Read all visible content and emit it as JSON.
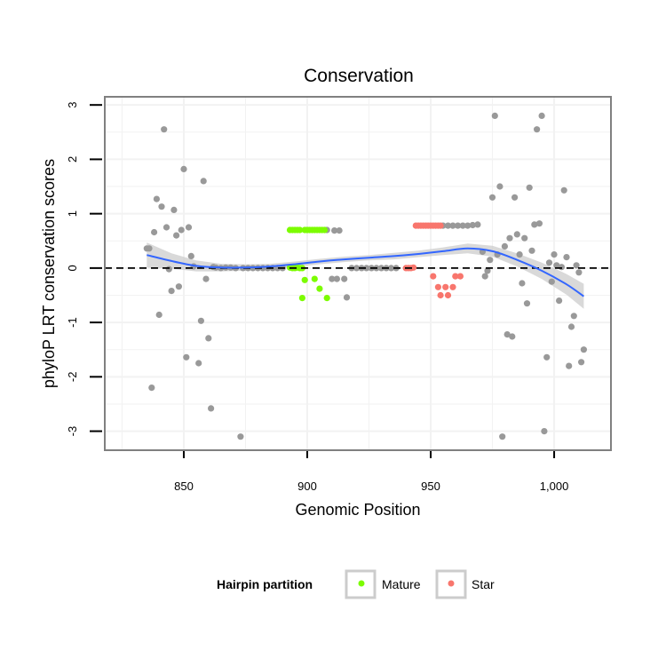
{
  "chart_data": {
    "type": "scatter",
    "title": "Conservation",
    "xlabel": "Genomic Position",
    "ylabel": "phyloP LRT conservation scores",
    "xlim": [
      818,
      1023
    ],
    "ylim": [
      -3.35,
      3.15
    ],
    "x_ticks": [
      850,
      900,
      950,
      1000
    ],
    "x_tick_labels": [
      "850",
      "900",
      "950",
      "1,000"
    ],
    "y_ticks": [
      -3,
      -2,
      -1,
      0,
      1,
      2,
      3
    ],
    "y_tick_labels": [
      "-3",
      "-2",
      "-1",
      "0",
      "1",
      "2",
      "3"
    ],
    "grid": true,
    "reference_line": {
      "y": 0,
      "style": "dashed"
    },
    "legend": {
      "title": "Hairpin partition",
      "position": "bottom",
      "entries": [
        {
          "label": "Mature",
          "color": "#7cfc00"
        },
        {
          "label": "Star",
          "color": "#f8766d"
        }
      ]
    },
    "series": [
      {
        "name": "",
        "color": "#999999",
        "points": [
          [
            835,
            0.36
          ],
          [
            836,
            0.36
          ],
          [
            837,
            -2.2
          ],
          [
            838,
            0.66
          ],
          [
            839,
            1.27
          ],
          [
            840,
            -0.86
          ],
          [
            841,
            1.13
          ],
          [
            842,
            2.55
          ],
          [
            843,
            0.75
          ],
          [
            844,
            -0.02
          ],
          [
            845,
            -0.42
          ],
          [
            846,
            1.07
          ],
          [
            847,
            0.6
          ],
          [
            848,
            -0.34
          ],
          [
            849,
            0.7
          ],
          [
            850,
            1.82
          ],
          [
            851,
            -1.64
          ],
          [
            852,
            0.75
          ],
          [
            853,
            0.22
          ],
          [
            854,
            0.03
          ],
          [
            856,
            -1.75
          ],
          [
            857,
            -0.97
          ],
          [
            858,
            1.6
          ],
          [
            859,
            -0.2
          ],
          [
            860,
            -1.29
          ],
          [
            861,
            -2.58
          ],
          [
            862,
            0.02
          ],
          [
            863,
            0.01
          ],
          [
            865,
            0.0
          ],
          [
            867,
            0.01
          ],
          [
            869,
            0.01
          ],
          [
            871,
            0.0
          ],
          [
            873,
            -3.1
          ],
          [
            874,
            0.0
          ],
          [
            876,
            0.0
          ],
          [
            878,
            0.0
          ],
          [
            880,
            0.0
          ],
          [
            882,
            0.0
          ],
          [
            884,
            0.0
          ],
          [
            886,
            0.0
          ],
          [
            888,
            0.0
          ],
          [
            890,
            0.0
          ],
          [
            908,
            0.7
          ],
          [
            910,
            -0.2
          ],
          [
            911,
            0.69
          ],
          [
            912,
            -0.2
          ],
          [
            913,
            0.69
          ],
          [
            915,
            -0.2
          ],
          [
            916,
            -0.54
          ],
          [
            918,
            0.0
          ],
          [
            920,
            0.0
          ],
          [
            922,
            0.0
          ],
          [
            924,
            0.0
          ],
          [
            926,
            0.0
          ],
          [
            928,
            0.0
          ],
          [
            930,
            0.0
          ],
          [
            932,
            0.0
          ],
          [
            934,
            0.0
          ],
          [
            936,
            0.0
          ],
          [
            955,
            0.78
          ],
          [
            957,
            0.78
          ],
          [
            959,
            0.78
          ],
          [
            961,
            0.78
          ],
          [
            963,
            0.78
          ],
          [
            965,
            0.78
          ],
          [
            967,
            0.79
          ],
          [
            969,
            0.8
          ],
          [
            971,
            0.3
          ],
          [
            972,
            -0.15
          ],
          [
            973,
            -0.05
          ],
          [
            974,
            0.15
          ],
          [
            975,
            1.3
          ],
          [
            976,
            2.8
          ],
          [
            977,
            0.25
          ],
          [
            978,
            1.5
          ],
          [
            979,
            -3.1
          ],
          [
            980,
            0.4
          ],
          [
            981,
            -1.22
          ],
          [
            982,
            0.55
          ],
          [
            983,
            -1.26
          ],
          [
            984,
            1.3
          ],
          [
            985,
            0.62
          ],
          [
            986,
            0.25
          ],
          [
            987,
            -0.28
          ],
          [
            988,
            0.55
          ],
          [
            989,
            -0.65
          ],
          [
            990,
            1.48
          ],
          [
            991,
            0.32
          ],
          [
            992,
            0.8
          ],
          [
            993,
            2.55
          ],
          [
            994,
            0.82
          ],
          [
            995,
            2.8
          ],
          [
            996,
            -3.0
          ],
          [
            997,
            -1.64
          ],
          [
            998,
            0.1
          ],
          [
            999,
            -0.25
          ],
          [
            1000,
            0.25
          ],
          [
            1001,
            0.05
          ],
          [
            1002,
            -0.6
          ],
          [
            1003,
            0.02
          ],
          [
            1004,
            1.43
          ],
          [
            1005,
            0.2
          ],
          [
            1006,
            -1.8
          ],
          [
            1007,
            -1.08
          ],
          [
            1008,
            -0.88
          ],
          [
            1009,
            0.05
          ],
          [
            1010,
            -0.08
          ],
          [
            1011,
            -1.73
          ],
          [
            1012,
            -1.5
          ]
        ]
      },
      {
        "name": "Mature",
        "color": "#7cfc00",
        "points": [
          [
            893,
            0.01
          ],
          [
            894,
            0.0
          ],
          [
            895,
            0.0
          ],
          [
            896,
            0.01
          ],
          [
            897,
            0.0
          ],
          [
            898,
            0.0
          ],
          [
            893,
            0.7
          ],
          [
            894,
            0.7
          ],
          [
            895,
            0.7
          ],
          [
            896,
            0.7
          ],
          [
            897,
            0.7
          ],
          [
            899,
            0.7
          ],
          [
            900,
            0.7
          ],
          [
            901,
            0.7
          ],
          [
            902,
            0.7
          ],
          [
            903,
            0.7
          ],
          [
            904,
            0.7
          ],
          [
            905,
            0.7
          ],
          [
            906,
            0.7
          ],
          [
            907,
            0.7
          ],
          [
            899,
            -0.22
          ],
          [
            898,
            -0.55
          ],
          [
            903,
            -0.2
          ],
          [
            905,
            -0.38
          ],
          [
            908,
            -0.55
          ],
          [
            895,
            0.02
          ]
        ]
      },
      {
        "name": "Star",
        "color": "#f8766d",
        "points": [
          [
            940,
            0.0
          ],
          [
            941,
            0.0
          ],
          [
            942,
            0.0
          ],
          [
            943,
            0.01
          ],
          [
            944,
            0.78
          ],
          [
            945,
            0.78
          ],
          [
            946,
            0.78
          ],
          [
            947,
            0.78
          ],
          [
            948,
            0.78
          ],
          [
            949,
            0.78
          ],
          [
            950,
            0.78
          ],
          [
            951,
            0.78
          ],
          [
            952,
            0.78
          ],
          [
            953,
            0.78
          ],
          [
            954,
            0.78
          ],
          [
            951,
            -0.15
          ],
          [
            953,
            -0.35
          ],
          [
            954,
            -0.5
          ],
          [
            956,
            -0.35
          ],
          [
            957,
            -0.5
          ],
          [
            959,
            -0.35
          ],
          [
            960,
            -0.15
          ],
          [
            962,
            -0.15
          ]
        ]
      }
    ],
    "smooth": {
      "color": "#3366ff",
      "band_color": "#cccccc",
      "x": [
        835,
        845,
        855,
        865,
        875,
        885,
        895,
        905,
        915,
        925,
        935,
        945,
        955,
        965,
        975,
        985,
        995,
        1005,
        1012
      ],
      "y": [
        0.24,
        0.13,
        0.04,
        0.01,
        0.01,
        0.03,
        0.07,
        0.12,
        0.16,
        0.19,
        0.22,
        0.26,
        0.31,
        0.36,
        0.31,
        0.15,
        -0.05,
        -0.3,
        -0.52
      ],
      "se": [
        0.23,
        0.14,
        0.1,
        0.07,
        0.06,
        0.05,
        0.05,
        0.05,
        0.05,
        0.05,
        0.06,
        0.06,
        0.07,
        0.09,
        0.1,
        0.12,
        0.15,
        0.19,
        0.23
      ]
    }
  }
}
